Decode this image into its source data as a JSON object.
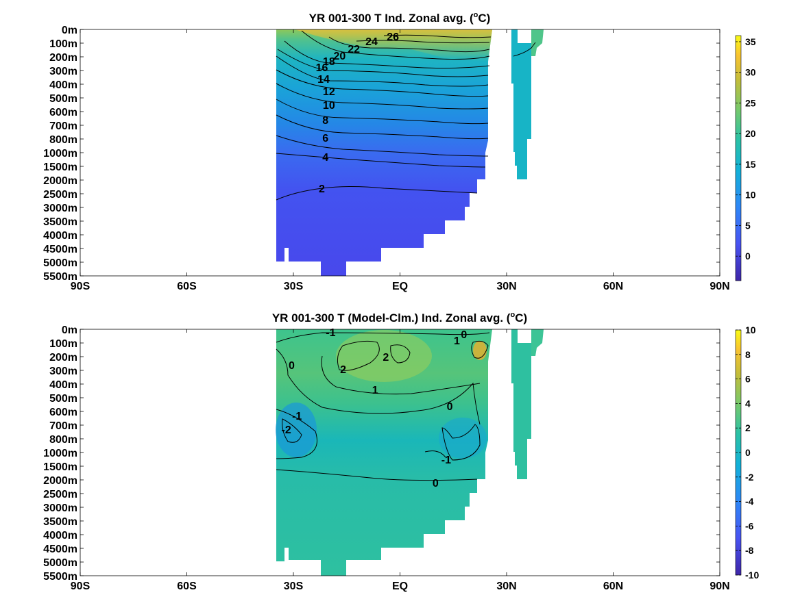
{
  "chart_data": [
    {
      "type": "heatmap",
      "title_main": "YR 001-300 T Ind. Zonal avg. (",
      "title_sup": "o",
      "title_end": "C)",
      "x_ticks": [
        "90S",
        "60S",
        "30S",
        "EQ",
        "30N",
        "60N",
        "90N"
      ],
      "y_ticks": [
        "0m",
        "100m",
        "200m",
        "300m",
        "400m",
        "500m",
        "600m",
        "700m",
        "800m",
        "1000m",
        "1500m",
        "2000m",
        "2500m",
        "3000m",
        "3500m",
        "4000m",
        "4500m",
        "5000m",
        "5500m"
      ],
      "xlim": [
        -90,
        90
      ],
      "colorbar": {
        "ticks": [
          35,
          30,
          25,
          20,
          15,
          10,
          5,
          0
        ],
        "range": [
          -4,
          36
        ]
      },
      "contour_labels": [
        {
          "text": "26",
          "lat": -2,
          "depth": 0.5
        },
        {
          "text": "24",
          "lat": -8,
          "depth": 0.85
        },
        {
          "text": "22",
          "lat": -13,
          "depth": 1.4
        },
        {
          "text": "20",
          "lat": -17,
          "depth": 1.9
        },
        {
          "text": "18",
          "lat": -20,
          "depth": 2.3
        },
        {
          "text": "16",
          "lat": -22,
          "depth": 2.75
        },
        {
          "text": "14",
          "lat": -21.5,
          "depth": 3.6
        },
        {
          "text": "12",
          "lat": -20,
          "depth": 4.5
        },
        {
          "text": "10",
          "lat": -20,
          "depth": 5.5
        },
        {
          "text": "8",
          "lat": -21,
          "depth": 6.6
        },
        {
          "text": "6",
          "lat": -21,
          "depth": 7.9
        },
        {
          "text": "4",
          "lat": -21,
          "depth": 9.3
        },
        {
          "text": "2",
          "lat": -22,
          "depth": 11.6
        }
      ]
    },
    {
      "type": "heatmap",
      "title_main": "YR 001-300 T (Model-Clm.) Ind. Zonal avg. (",
      "title_sup": "o",
      "title_end": "C)",
      "x_ticks": [
        "90S",
        "60S",
        "30S",
        "EQ",
        "30N",
        "60N",
        "90N"
      ],
      "y_ticks": [
        "0m",
        "100m",
        "200m",
        "300m",
        "400m",
        "500m",
        "600m",
        "700m",
        "800m",
        "1000m",
        "1500m",
        "2000m",
        "2500m",
        "3000m",
        "3500m",
        "4000m",
        "4500m",
        "5000m",
        "5500m"
      ],
      "xlim": [
        -90,
        90
      ],
      "colorbar": {
        "ticks": [
          10,
          8,
          6,
          4,
          2,
          0,
          -2,
          -4,
          -6,
          -8,
          -10
        ],
        "range": [
          -10,
          10
        ]
      },
      "contour_labels": [
        {
          "text": "-1",
          "lat": -19.5,
          "depth": 0.2
        },
        {
          "text": "0",
          "lat": 18,
          "depth": 0.35
        },
        {
          "text": "1",
          "lat": 16,
          "depth": 0.8
        },
        {
          "text": "2",
          "lat": -4,
          "depth": 2.0
        },
        {
          "text": "2",
          "lat": -16,
          "depth": 2.9
        },
        {
          "text": "0",
          "lat": -30.5,
          "depth": 2.6
        },
        {
          "text": "1",
          "lat": -7,
          "depth": 4.4
        },
        {
          "text": "0",
          "lat": 14,
          "depth": 5.6
        },
        {
          "text": "-1",
          "lat": -29,
          "depth": 6.3
        },
        {
          "text": "-2",
          "lat": -32,
          "depth": 7.3
        },
        {
          "text": "-1",
          "lat": 13,
          "depth": 9.5
        },
        {
          "text": "0",
          "lat": 10,
          "depth": 11.2
        }
      ]
    }
  ]
}
